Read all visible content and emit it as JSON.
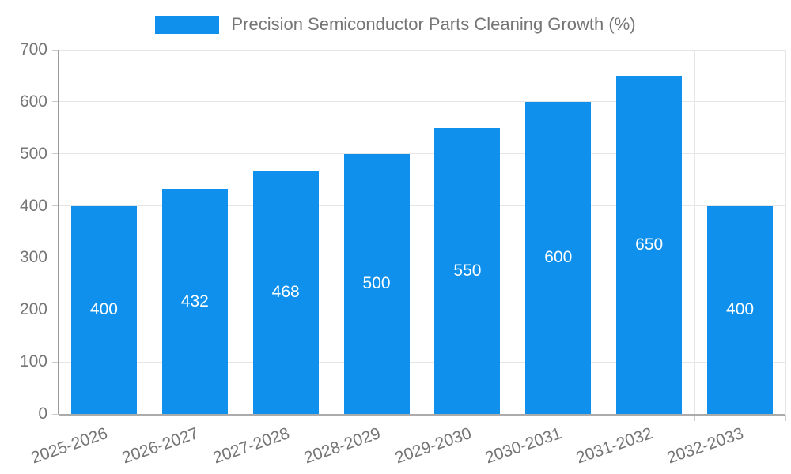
{
  "legend": {
    "label": "Precision Semiconductor Parts Cleaning Growth (%)"
  },
  "colors": {
    "bar": "#0f90ec",
    "axis_text": "#757575",
    "grid": "#e6e6e6",
    "tick": "#cccccc",
    "axis_line": "#9a9a9a",
    "value_label": "#ffffff",
    "background": "#ffffff"
  },
  "chart_data": {
    "type": "bar",
    "title": "Precision Semiconductor Parts Cleaning Growth (%)",
    "categories": [
      "2025-2026",
      "2026-2027",
      "2027-2028",
      "2028-2029",
      "2029-2030",
      "2030-2031",
      "2031-2032",
      "2032-2033"
    ],
    "values": [
      400,
      432,
      468,
      500,
      550,
      600,
      650,
      400
    ],
    "xlabel": "",
    "ylabel": "",
    "ylim": [
      0,
      700
    ],
    "ytick_step": 100,
    "yticks": [
      0,
      100,
      200,
      300,
      400,
      500,
      600,
      700
    ],
    "grid": true,
    "legend_position": "top",
    "bar_labels": true,
    "bar_label_position": "center"
  }
}
